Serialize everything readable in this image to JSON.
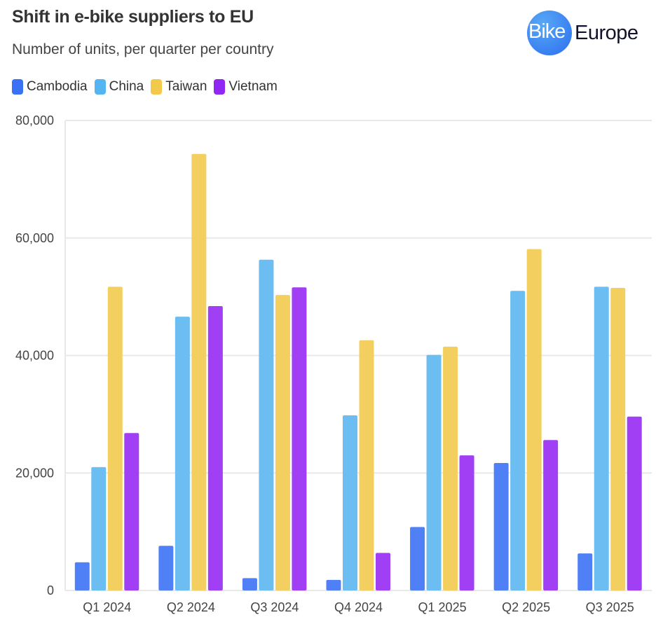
{
  "header": {
    "title": "Shift in e-bike suppliers to EU",
    "subtitle": "Number of units, per quarter per country",
    "logo_text": "BikeEurope",
    "logo_part1": "Bike",
    "logo_part2": "Europe"
  },
  "chart_data": {
    "type": "bar",
    "title": "Shift in e-bike suppliers to EU",
    "subtitle": "Number of units, per quarter per country",
    "categories": [
      "Q1 2024",
      "Q2 2024",
      "Q3 2024",
      "Q4 2024",
      "Q1 2025",
      "Q2 2025",
      "Q3 2025"
    ],
    "series": [
      {
        "name": "Cambodia",
        "color": "#4f80f5",
        "values": [
          4800,
          7600,
          2100,
          1800,
          10800,
          21700,
          6300
        ]
      },
      {
        "name": "China",
        "color": "#6cbdf1",
        "values": [
          21000,
          46600,
          56300,
          29800,
          40100,
          51000,
          51700
        ]
      },
      {
        "name": "Taiwan",
        "color": "#f2cf5f",
        "values": [
          51700,
          74300,
          50300,
          42600,
          41500,
          58100,
          51500
        ]
      },
      {
        "name": "Vietnam",
        "color": "#a03ff3",
        "values": [
          26800,
          48400,
          51600,
          6400,
          23000,
          25600,
          29600
        ]
      }
    ],
    "ylim": [
      0,
      80000
    ],
    "yticks": [
      "0",
      "20,000",
      "40,000",
      "60,000",
      "80,000"
    ],
    "ytick_values": [
      0,
      20000,
      40000,
      60000,
      80000
    ],
    "grid": true,
    "legend": "top-left",
    "xlabel": "",
    "ylabel": ""
  }
}
